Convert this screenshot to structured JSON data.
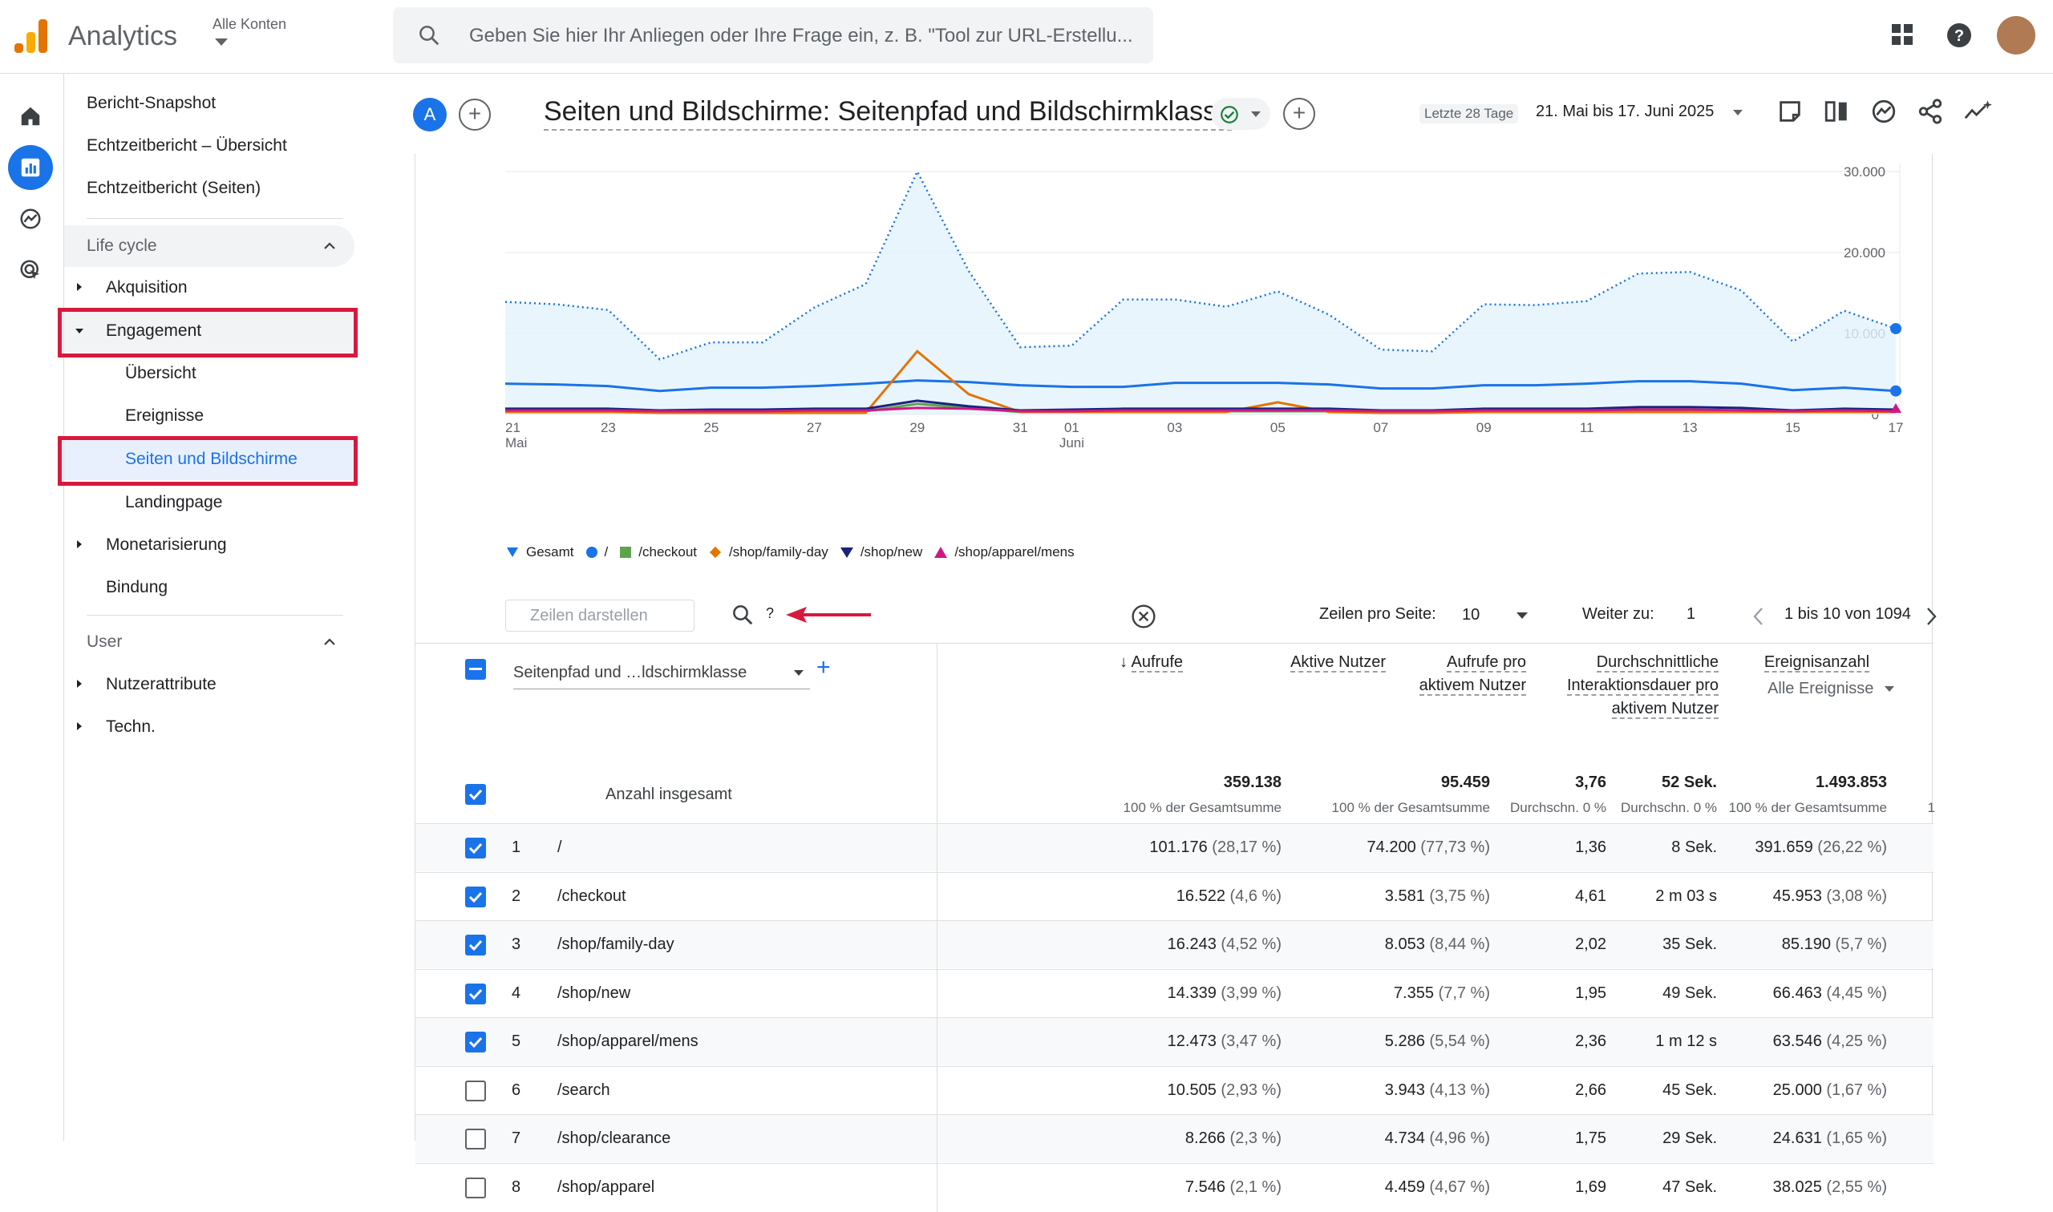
{
  "app": {
    "brand": "Analytics",
    "account_label": "Alle Konten",
    "search_placeholder": "Geben Sie hier Ihr Anliegen oder Ihre Frage ein, z. B. \"Tool zur URL-Erstellu..."
  },
  "sidebar": {
    "items_top": [
      "Bericht-Snapshot",
      "Echtzeitbericht – Übersicht",
      "Echtzeitbericht (Seiten)"
    ],
    "section_lifecycle": "Life cycle",
    "acquisition": "Akquisition",
    "engagement": "Engagement",
    "engagement_children": [
      "Übersicht",
      "Ereignisse",
      "Seiten und Bildschirme",
      "Landingpage"
    ],
    "monetization": "Monetarisierung",
    "retention": "Bindung",
    "section_user": "User",
    "user_attributes": "Nutzerattribute",
    "tech": "Techn.",
    "selected": "Seiten und Bildschirme"
  },
  "header": {
    "comparison_letter": "A",
    "title": "Seiten und Bildschirme: Seitenpfad und Bildschirmklasse",
    "date_preset": "Letzte 28 Tage",
    "date_range": "21. Mai bis 17. Juni 2025"
  },
  "chart_data": {
    "type": "line",
    "x": [
      "21 Mai",
      "22",
      "23",
      "24",
      "25",
      "26",
      "27",
      "28",
      "29",
      "30",
      "31",
      "01 Juni",
      "02",
      "03",
      "04",
      "05",
      "06",
      "07",
      "08",
      "09",
      "10",
      "11",
      "12",
      "13",
      "14",
      "15",
      "16",
      "17"
    ],
    "x_tick_labels": [
      "21",
      "23",
      "25",
      "27",
      "29",
      "31",
      "01",
      "03",
      "05",
      "07",
      "09",
      "11",
      "13",
      "15",
      "17"
    ],
    "x_sub_labels": {
      "21": "Mai",
      "01": "Juni"
    },
    "y_tick_labels": [
      "30.000",
      "20.000",
      "10.000",
      "0"
    ],
    "ylim": [
      0,
      30000
    ],
    "series": [
      {
        "name": "Gesamt",
        "color": "#1a73e8",
        "values": [
          13900,
          13600,
          12900,
          6800,
          8900,
          8900,
          13200,
          16100,
          30000,
          17700,
          8300,
          8500,
          14200,
          14200,
          13300,
          15200,
          12300,
          8000,
          7800,
          13600,
          13500,
          14000,
          17400,
          17600,
          15300,
          9000,
          12800,
          10600
        ]
      },
      {
        "name": "/",
        "color": "#1a73e8",
        "values": [
          3800,
          3700,
          3500,
          2900,
          3300,
          3300,
          3500,
          3800,
          4200,
          4000,
          3600,
          3400,
          3400,
          3900,
          3900,
          3900,
          3700,
          3200,
          3200,
          3600,
          3600,
          3800,
          4100,
          4100,
          3800,
          3000,
          3300,
          2900
        ]
      },
      {
        "name": "/checkout",
        "color": "#5fa34c",
        "values": [
          400,
          400,
          400,
          300,
          300,
          300,
          300,
          400,
          1300,
          800,
          300,
          300,
          300,
          400,
          400,
          400,
          400,
          300,
          300,
          400,
          400,
          400,
          400,
          400,
          400,
          300,
          300,
          300
        ]
      },
      {
        "name": "/shop/family-day",
        "color": "#e37400",
        "values": [
          300,
          300,
          300,
          200,
          200,
          200,
          200,
          200,
          7800,
          2500,
          300,
          300,
          300,
          300,
          300,
          1500,
          300,
          200,
          200,
          300,
          300,
          300,
          300,
          300,
          300,
          300,
          300,
          300
        ]
      },
      {
        "name": "/shop/new",
        "color": "#1a237e",
        "values": [
          700,
          700,
          700,
          500,
          600,
          600,
          700,
          700,
          1700,
          1000,
          500,
          600,
          700,
          700,
          700,
          700,
          700,
          500,
          500,
          700,
          700,
          700,
          900,
          900,
          800,
          500,
          700,
          600
        ]
      },
      {
        "name": "/shop/apparel/mens",
        "color": "#d01884",
        "values": [
          500,
          500,
          500,
          400,
          400,
          400,
          500,
          500,
          800,
          700,
          400,
          400,
          500,
          500,
          500,
          500,
          500,
          400,
          400,
          500,
          500,
          500,
          600,
          600,
          500,
          400,
          500,
          400
        ]
      }
    ]
  },
  "toolbar": {
    "rows_placeholder": "Zeilen darstellen",
    "search_value": "?",
    "rows_per_page_label": "Zeilen pro Seite:",
    "rows_per_page": "10",
    "goto_label": "Weiter zu:",
    "goto_value": "1",
    "range": "1 bis 10 von 1094"
  },
  "table": {
    "dimension": "Seitenpfad und …ldschirmklasse",
    "columns": [
      {
        "label": "Aufrufe",
        "total": "359.138",
        "sub": "100 % der Gesamtsumme"
      },
      {
        "label": "Aktive Nutzer",
        "total": "95.459",
        "sub": "100 % der Gesamtsumme"
      },
      {
        "label": "Aufrufe pro aktivem Nutzer",
        "total": "3,76",
        "sub": "Durchschn. 0 %"
      },
      {
        "label": "Durchschnittliche Interaktionsdauer pro aktivem Nutzer",
        "total": "52 Sek.",
        "sub": "Durchschn. 0 %"
      },
      {
        "label": "Ereignisanzahl",
        "total": "1.493.853",
        "sub": "100 % der Gesamtsumme",
        "filter": "Alle Ereignisse"
      }
    ],
    "total_label": "Anzahl insgesamt",
    "rows": [
      {
        "n": "1",
        "path": "/",
        "checked": true,
        "views": "101.176",
        "views_pct": "(28,17 %)",
        "users": "74.200",
        "users_pct": "(77,73 %)",
        "vpu": "1,36",
        "dur": "8 Sek.",
        "events": "391.659",
        "events_pct": "(26,22 %)"
      },
      {
        "n": "2",
        "path": "/checkout",
        "checked": true,
        "views": "16.522",
        "views_pct": "(4,6 %)",
        "users": "3.581",
        "users_pct": "(3,75 %)",
        "vpu": "4,61",
        "dur": "2 m 03 s",
        "events": "45.953",
        "events_pct": "(3,08 %)"
      },
      {
        "n": "3",
        "path": "/shop/family-day",
        "checked": true,
        "views": "16.243",
        "views_pct": "(4,52 %)",
        "users": "8.053",
        "users_pct": "(8,44 %)",
        "vpu": "2,02",
        "dur": "35 Sek.",
        "events": "85.190",
        "events_pct": "(5,7 %)"
      },
      {
        "n": "4",
        "path": "/shop/new",
        "checked": true,
        "views": "14.339",
        "views_pct": "(3,99 %)",
        "users": "7.355",
        "users_pct": "(7,7 %)",
        "vpu": "1,95",
        "dur": "49 Sek.",
        "events": "66.463",
        "events_pct": "(4,45 %)"
      },
      {
        "n": "5",
        "path": "/shop/apparel/mens",
        "checked": true,
        "views": "12.473",
        "views_pct": "(3,47 %)",
        "users": "5.286",
        "users_pct": "(5,54 %)",
        "vpu": "2,36",
        "dur": "1 m 12 s",
        "events": "63.546",
        "events_pct": "(4,25 %)"
      },
      {
        "n": "6",
        "path": "/search",
        "checked": false,
        "views": "10.505",
        "views_pct": "(2,93 %)",
        "users": "3.943",
        "users_pct": "(4,13 %)",
        "vpu": "2,66",
        "dur": "45 Sek.",
        "events": "25.000",
        "events_pct": "(1,67 %)"
      },
      {
        "n": "7",
        "path": "/shop/clearance",
        "checked": false,
        "views": "8.266",
        "views_pct": "(2,3 %)",
        "users": "4.734",
        "users_pct": "(4,96 %)",
        "vpu": "1,75",
        "dur": "29 Sek.",
        "events": "24.631",
        "events_pct": "(1,65 %)"
      },
      {
        "n": "8",
        "path": "/shop/apparel",
        "checked": false,
        "views": "7.546",
        "views_pct": "(2,1 %)",
        "users": "4.459",
        "users_pct": "(4,67 %)",
        "vpu": "1,69",
        "dur": "47 Sek.",
        "events": "38.025",
        "events_pct": "(2,55 %)"
      }
    ],
    "trailing_digit": "1"
  },
  "colors": {
    "accent": "#1a73e8",
    "highlight": "#d7193e",
    "total_area": "#e3f2fd"
  }
}
